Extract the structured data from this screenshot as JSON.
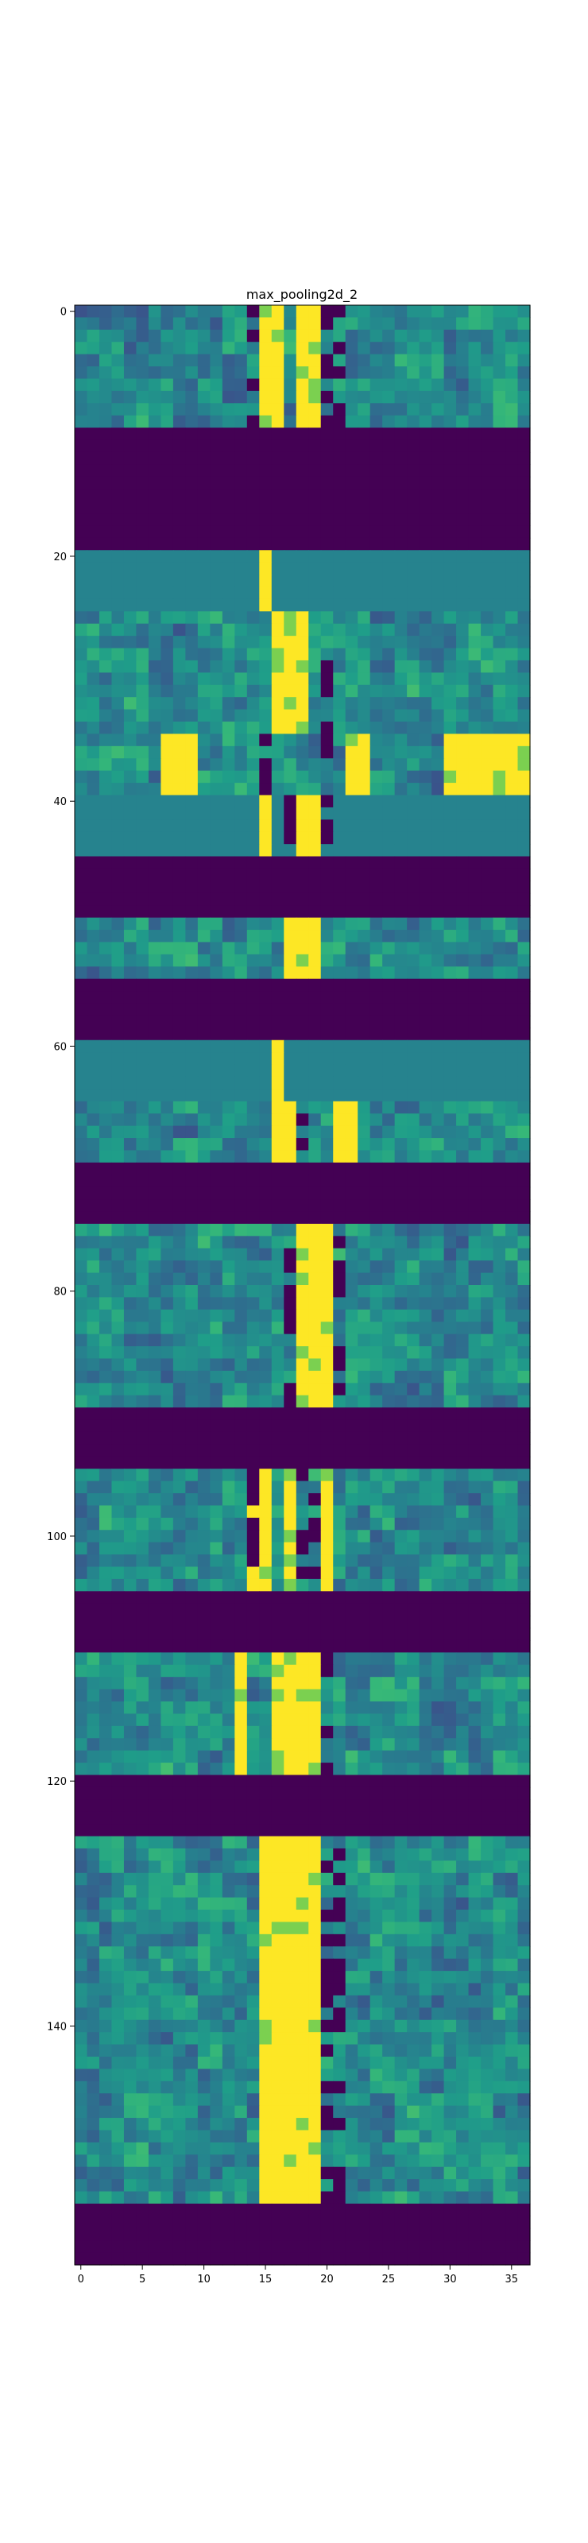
{
  "chart_data": {
    "type": "heatmap",
    "title": "max_pooling2d_2",
    "xlabel": "",
    "ylabel": "",
    "colormap": "viridis",
    "grid": false,
    "xlim": [
      -0.5,
      36.5
    ],
    "ylim": [
      159.5,
      -0.5
    ],
    "xticks": [
      0,
      5,
      10,
      15,
      20,
      25,
      30,
      35
    ],
    "yticks": [
      0,
      20,
      40,
      60,
      80,
      100,
      120,
      140
    ],
    "ncols": 37,
    "nrows": 160,
    "colors": {
      "dark": "#440154",
      "teal": "#2a788e",
      "bright": "#fde725",
      "green": "#35b779",
      "frame": "#000000"
    },
    "bright_columns_note_free": true,
    "bands": [
      {
        "type": "textured",
        "rows": [
          0,
          9
        ],
        "bright_cols": [
          15,
          16,
          18,
          19
        ],
        "dark_cols": [
          14,
          20,
          21
        ]
      },
      {
        "type": "dark",
        "rows": [
          10,
          19
        ]
      },
      {
        "type": "flat",
        "rows": [
          20,
          24
        ],
        "bright_cols": [
          15
        ]
      },
      {
        "type": "textured",
        "rows": [
          25,
          34
        ],
        "bright_cols": [
          16,
          17,
          18
        ],
        "dark_cols": [
          20
        ]
      },
      {
        "type": "textured",
        "rows": [
          35,
          39
        ],
        "bright_cols": [
          7,
          8,
          9,
          22,
          23,
          30,
          31,
          32,
          33,
          34,
          35,
          36
        ],
        "dark_cols": [
          15,
          20
        ]
      },
      {
        "type": "flat",
        "rows": [
          40,
          44
        ],
        "bright_cols": [
          15,
          18,
          19
        ],
        "dark_cols": [
          17,
          20
        ]
      },
      {
        "type": "dark",
        "rows": [
          45,
          49
        ]
      },
      {
        "type": "textured",
        "rows": [
          50,
          54
        ],
        "bright_cols": [
          17,
          18,
          19
        ],
        "dark_cols": [
          20
        ]
      },
      {
        "type": "dark",
        "rows": [
          55,
          59
        ]
      },
      {
        "type": "flat",
        "rows": [
          60,
          64
        ],
        "bright_cols": [
          16
        ]
      },
      {
        "type": "textured",
        "rows": [
          65,
          69
        ],
        "bright_cols": [
          16,
          17,
          21,
          22
        ],
        "dark_cols": [
          18
        ]
      },
      {
        "type": "dark",
        "rows": [
          70,
          74
        ]
      },
      {
        "type": "textured",
        "rows": [
          75,
          89
        ],
        "bright_cols": [
          18,
          19,
          20
        ],
        "dark_cols": [
          17,
          21
        ]
      },
      {
        "type": "dark",
        "rows": [
          90,
          94
        ]
      },
      {
        "type": "textured",
        "rows": [
          95,
          104
        ],
        "bright_cols": [
          14,
          15,
          17,
          20
        ],
        "dark_cols": [
          14,
          18,
          19
        ]
      },
      {
        "type": "dark",
        "rows": [
          105,
          109
        ]
      },
      {
        "type": "textured",
        "rows": [
          110,
          119
        ],
        "bright_cols": [
          13,
          16,
          17,
          18,
          19
        ],
        "dark_cols": [
          20
        ]
      },
      {
        "type": "dark",
        "rows": [
          120,
          124
        ]
      },
      {
        "type": "textured",
        "rows": [
          125,
          154
        ],
        "bright_cols": [
          15,
          16,
          17,
          18,
          19
        ],
        "dark_cols": [
          20,
          21
        ]
      },
      {
        "type": "dark",
        "rows": [
          155,
          159
        ]
      }
    ]
  }
}
